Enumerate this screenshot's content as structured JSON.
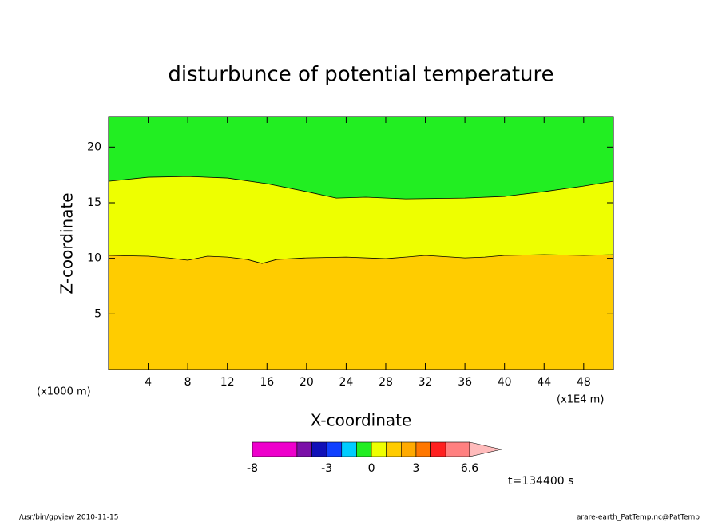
{
  "chart_data": {
    "type": "contour",
    "title": "disturbunce of potential temperature",
    "x_label": "X-coordinate",
    "y_label": "Z-coordinate",
    "x_unit_left": "(x1000 m)",
    "x_unit_right": "(x1E4 m)",
    "time_label": "t=134400 s",
    "footer_left": "/usr/bin/gpview  2010-11-15",
    "footer_right": "arare-earth_PatTemp.nc@PatTemp",
    "xlim": [
      0,
      51
    ],
    "ylim": [
      0,
      22.75
    ],
    "xticks": [
      4,
      8,
      12,
      16,
      20,
      24,
      28,
      32,
      36,
      40,
      44,
      48
    ],
    "yticks": [
      5,
      10,
      15,
      20
    ],
    "contours": [
      {
        "level": 1,
        "x": [
          0,
          4,
          6,
          8,
          10,
          12,
          14,
          15.5,
          17,
          20,
          24,
          28,
          30,
          32,
          36,
          38,
          40,
          44,
          48,
          51
        ],
        "values": [
          10.26,
          10.19,
          10.04,
          9.83,
          10.19,
          10.11,
          9.9,
          9.54,
          9.9,
          10.04,
          10.11,
          9.97,
          10.11,
          10.26,
          10.04,
          10.11,
          10.26,
          10.33,
          10.26,
          10.33
        ]
      },
      {
        "level": 0,
        "x": [
          0,
          4,
          8,
          12,
          16,
          20,
          23,
          26,
          30,
          36,
          40,
          44,
          48,
          51
        ],
        "values": [
          16.93,
          17.29,
          17.36,
          17.22,
          16.71,
          16.0,
          15.42,
          15.5,
          15.35,
          15.42,
          15.57,
          16.0,
          16.5,
          16.93
        ]
      }
    ],
    "colorbar": {
      "levels": [
        -8,
        -5,
        -4,
        -3,
        -2,
        -1,
        0,
        1,
        2,
        3,
        4,
        5,
        6.6
      ],
      "colors": [
        "#ee00cc",
        "#7b10a8",
        "#1010b8",
        "#1040ff",
        "#00ccff",
        "#22ee22",
        "#eeff00",
        "#ffcc00",
        "#ffaa00",
        "#ff7700",
        "#ff2020",
        "#ff8080"
      ],
      "extend_color": "#ffbbbb",
      "ticks": [
        -8,
        -3,
        0,
        3,
        6.6
      ]
    }
  }
}
